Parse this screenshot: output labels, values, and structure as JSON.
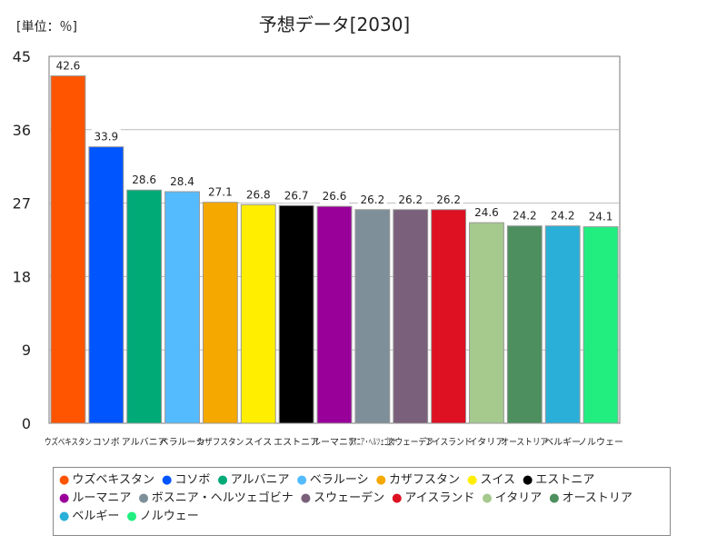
{
  "chart_data": {
    "type": "bar",
    "title": "予想データ[2030]",
    "unit_label": "[単位：％]",
    "ylim": [
      0,
      45
    ],
    "yticks": [
      "0",
      "9",
      "18",
      "27",
      "36",
      "45"
    ],
    "grid": "horizontal",
    "legend_position": "bottom",
    "categories": [
      "ウズベキスタン",
      "コソボ",
      "アルバニア",
      "ベラルーシ",
      "カザフスタン",
      "スイス",
      "エストニア",
      "ルーマニア",
      "ボスニア・ヘルツェゴビナ",
      "スウェーデン",
      "アイスランド",
      "イタリア",
      "オーストリア",
      "ベルギー",
      "ノルウェー"
    ],
    "values": [
      42.6,
      33.9,
      28.6,
      28.4,
      27.1,
      26.8,
      26.7,
      26.6,
      26.2,
      26.2,
      26.2,
      24.6,
      24.2,
      24.2,
      24.1
    ],
    "value_labels": [
      "42.6",
      "33.9",
      "28.6",
      "28.4",
      "27.1",
      "26.8",
      "26.7",
      "26.6",
      "26.2",
      "26.2",
      "26.2",
      "24.6",
      "24.2",
      "24.2",
      "24.1"
    ],
    "colors": [
      "#ff5500",
      "#0055ff",
      "#00aa77",
      "#55bbff",
      "#f5a800",
      "#ffee00",
      "#000000",
      "#990099",
      "#7f8f99",
      "#7a607a",
      "#dd1122",
      "#a6c98e",
      "#4d8f5e",
      "#2ab0d8",
      "#22ee80"
    ]
  }
}
